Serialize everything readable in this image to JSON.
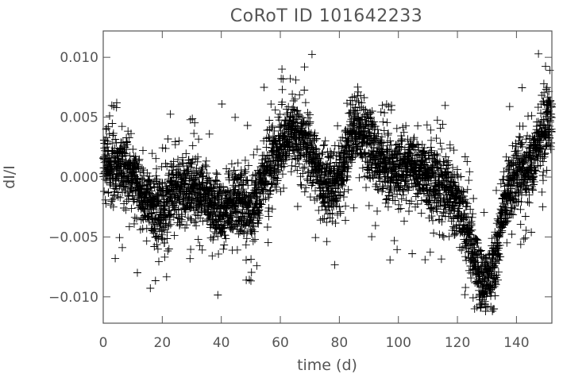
{
  "chart_data": {
    "type": "scatter",
    "title": "CoRoT ID 101642233",
    "xlabel": "time (d)",
    "ylabel": "dI/I",
    "xlim": [
      0,
      152
    ],
    "ylim": [
      -0.0122,
      0.0122
    ],
    "x_ticks": [
      0,
      20,
      40,
      60,
      80,
      100,
      120,
      140
    ],
    "x_tick_labels": [
      "0",
      "20",
      "40",
      "60",
      "80",
      "100",
      "120",
      "140"
    ],
    "y_ticks": [
      -0.01,
      -0.005,
      0.0,
      0.005,
      0.01
    ],
    "y_tick_labels": [
      "−0.010",
      "−0.005",
      "0.000",
      "0.005",
      "0.010"
    ],
    "marker": "plus",
    "grid": false,
    "series": [
      {
        "color": "#000000",
        "trend_x": [
          0,
          5,
          10,
          15,
          20,
          25,
          30,
          35,
          40,
          45,
          50,
          55,
          60,
          65,
          70,
          75,
          80,
          85,
          90,
          95,
          100,
          105,
          110,
          115,
          120,
          125,
          128,
          132,
          136,
          140,
          145,
          150,
          152
        ],
        "trend_y": [
          0.0005,
          0.001,
          0.0,
          -0.002,
          -0.003,
          -0.001,
          -0.001,
          -0.002,
          -0.003,
          -0.002,
          -0.003,
          0.0,
          0.002,
          0.004,
          0.002,
          -0.001,
          0.0,
          0.004,
          0.003,
          0.001,
          0.0005,
          0.001,
          0.0,
          -0.001,
          -0.002,
          -0.006,
          -0.009,
          -0.008,
          -0.002,
          0.0,
          0.001,
          0.004,
          0.005
        ],
        "scatter_amplitude": 0.0028
      }
    ]
  }
}
